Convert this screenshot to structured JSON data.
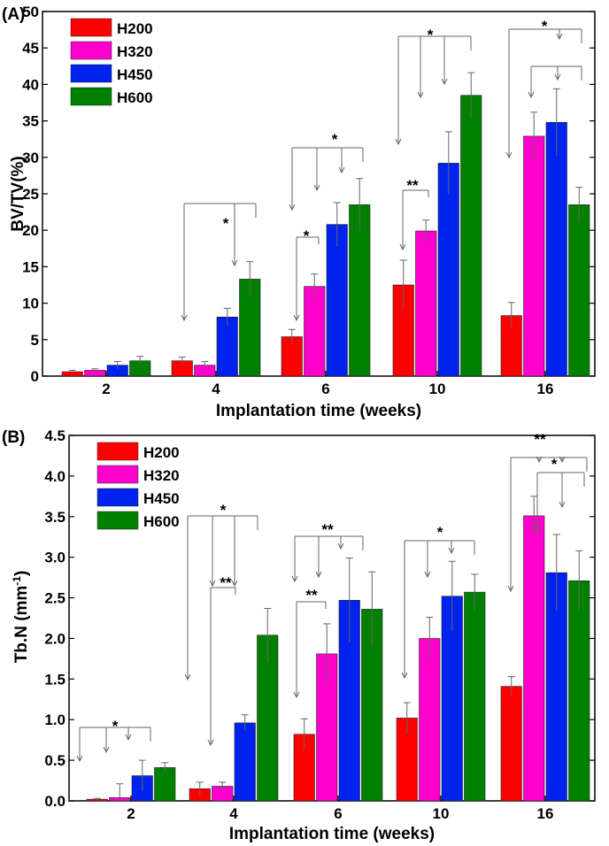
{
  "chart_data": [
    {
      "type": "bar",
      "panel_label": "(A)",
      "categories": [
        "2",
        "4",
        "6",
        "10",
        "16"
      ],
      "xlabel": "Implantation time (weeks)",
      "ylabel": "BV/TV(%)",
      "ylim": [
        0,
        50
      ],
      "yticks": [
        "0",
        "5",
        "10",
        "15",
        "20",
        "25",
        "30",
        "35",
        "40",
        "45",
        "50"
      ],
      "legend_position": "top-left",
      "series": [
        {
          "name": "H200",
          "color": "#ff0000",
          "values": [
            0.6,
            2.1,
            5.4,
            12.5,
            8.3
          ],
          "errors": [
            0.2,
            0.5,
            1.0,
            3.4,
            1.8
          ]
        },
        {
          "name": "H320",
          "color": "#ff00cc",
          "values": [
            0.8,
            1.5,
            12.3,
            19.9,
            32.9
          ],
          "errors": [
            0.2,
            0.5,
            1.7,
            1.5,
            3.3
          ]
        },
        {
          "name": "H450",
          "color": "#0022ee",
          "values": [
            1.5,
            8.1,
            20.8,
            29.2,
            34.8
          ],
          "errors": [
            0.5,
            1.2,
            3.0,
            4.3,
            4.6
          ]
        },
        {
          "name": "H600",
          "color": "#008000",
          "values": [
            2.1,
            13.3,
            23.5,
            38.5,
            23.5
          ],
          "errors": [
            0.6,
            2.4,
            3.6,
            3.1,
            2.4
          ]
        }
      ],
      "annotations": [
        {
          "label": "**",
          "category": 1
        },
        {
          "label": "*",
          "category": 2
        },
        {
          "label": "*",
          "category": 2
        },
        {
          "label": "*",
          "category": 3
        },
        {
          "label": "*",
          "category": 3
        },
        {
          "label": "**",
          "category": 4
        },
        {
          "label": "*",
          "category": 4
        }
      ]
    },
    {
      "type": "bar",
      "panel_label": "(B)",
      "categories": [
        "2",
        "4",
        "6",
        "10",
        "16"
      ],
      "xlabel": "Implantation time (weeks)",
      "ylabel": "Tb.N (mm",
      "ylabel_sup": "-1",
      "ylabel_end": ")",
      "ylim": [
        0,
        4.5
      ],
      "yticks": [
        "0.0",
        "0.5",
        "1.0",
        "1.5",
        "2.0",
        "2.5",
        "3.0",
        "3.5",
        "4.0",
        "4.5"
      ],
      "legend_position": "top-left",
      "series": [
        {
          "name": "H200",
          "color": "#ff0000",
          "values": [
            0.02,
            0.15,
            0.82,
            1.02,
            1.41
          ],
          "errors": [
            0.01,
            0.08,
            0.19,
            0.19,
            0.12
          ]
        },
        {
          "name": "H320",
          "color": "#ff00cc",
          "values": [
            0.04,
            0.18,
            1.81,
            2.0,
            3.51
          ],
          "errors": [
            0.17,
            0.05,
            0.37,
            0.26,
            0.24
          ]
        },
        {
          "name": "H450",
          "color": "#0022ee",
          "values": [
            0.31,
            0.96,
            2.47,
            2.52,
            2.81
          ],
          "errors": [
            0.19,
            0.1,
            0.52,
            0.43,
            0.47
          ]
        },
        {
          "name": "H600",
          "color": "#008000",
          "values": [
            0.41,
            2.04,
            2.36,
            2.57,
            2.71
          ],
          "errors": [
            0.06,
            0.33,
            0.46,
            0.22,
            0.37
          ]
        }
      ],
      "annotations": [
        {
          "label": "*",
          "category": 0
        },
        {
          "label": "*",
          "category": 1
        },
        {
          "label": "**",
          "category": 1
        },
        {
          "label": "**",
          "category": 2
        },
        {
          "label": "**",
          "category": 2
        },
        {
          "label": "*",
          "category": 3
        },
        {
          "label": "**",
          "category": 4
        },
        {
          "label": "*",
          "category": 4
        }
      ]
    }
  ]
}
